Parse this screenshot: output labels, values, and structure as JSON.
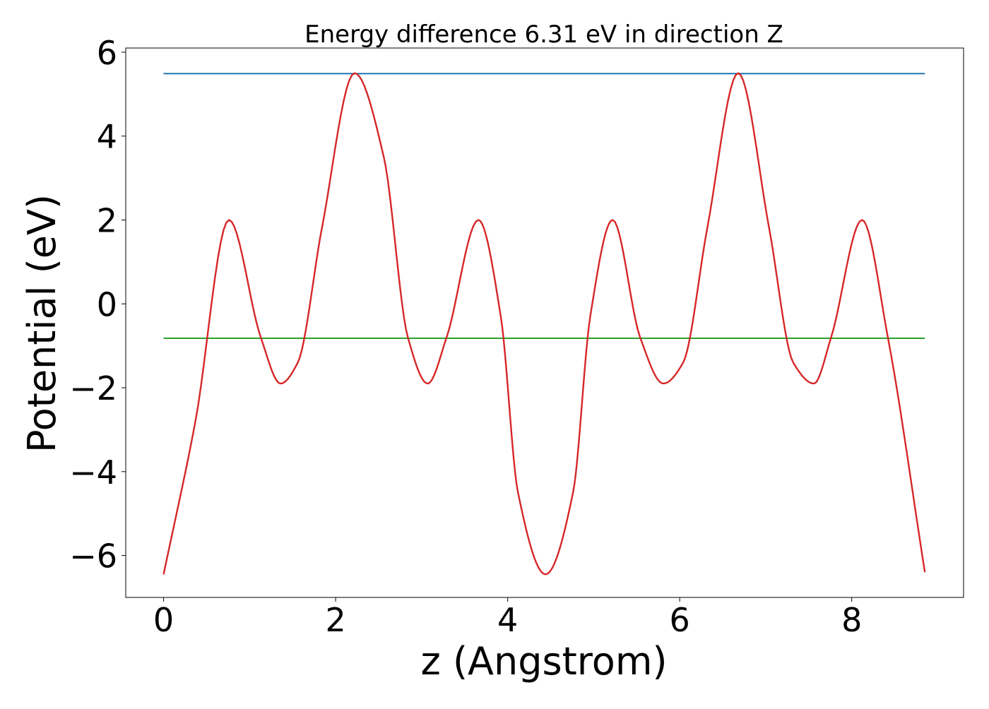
{
  "chart_data": {
    "type": "line",
    "title": "Energy difference 6.31 eV in direction Z",
    "xlabel": "z (Angstrom)",
    "ylabel": "Potential (eV)",
    "xlim": [
      -0.44,
      9.3
    ],
    "ylim": [
      -7.0,
      6.1
    ],
    "xticks": [
      0,
      2,
      4,
      6,
      8
    ],
    "yticks": [
      6,
      4,
      2,
      0,
      -2,
      -4,
      -6
    ],
    "xtick_labels": [
      "0",
      "2",
      "4",
      "6",
      "8"
    ],
    "ytick_labels": [
      "6",
      "4",
      "2",
      "0",
      "−2",
      "−4",
      "−6"
    ],
    "grid": false,
    "legend": "none",
    "series": [
      {
        "role": "potential-curve",
        "color": "#d62728",
        "x": [
          0.0,
          0.37,
          0.76,
          1.13,
          1.36,
          1.56,
          1.84,
          2.22,
          2.56,
          2.84,
          3.07,
          3.29,
          3.66,
          3.92,
          4.12,
          4.44,
          4.76,
          4.96,
          5.22,
          5.54,
          5.81,
          6.04,
          6.32,
          6.68,
          7.04,
          7.32,
          7.56,
          7.76,
          8.12,
          8.42,
          8.85
        ],
        "y": [
          -6.45,
          -2.8,
          2.0,
          -0.8,
          -1.9,
          -1.4,
          1.8,
          5.5,
          3.5,
          -0.8,
          -1.9,
          -0.8,
          2.0,
          -0.3,
          -4.5,
          -6.45,
          -4.5,
          -0.3,
          2.0,
          -0.8,
          -1.9,
          -1.4,
          1.8,
          5.5,
          1.8,
          -1.4,
          -1.9,
          -0.8,
          2.0,
          -0.8,
          -6.4
        ]
      },
      {
        "role": "upper-reference-line",
        "color": "#1f77b4",
        "x": [
          0.0,
          8.85
        ],
        "y": [
          5.49,
          5.49
        ]
      },
      {
        "role": "lower-reference-line",
        "color": "#2ca02c",
        "x": [
          0.0,
          8.85
        ],
        "y": [
          -0.82,
          -0.82
        ]
      }
    ]
  }
}
